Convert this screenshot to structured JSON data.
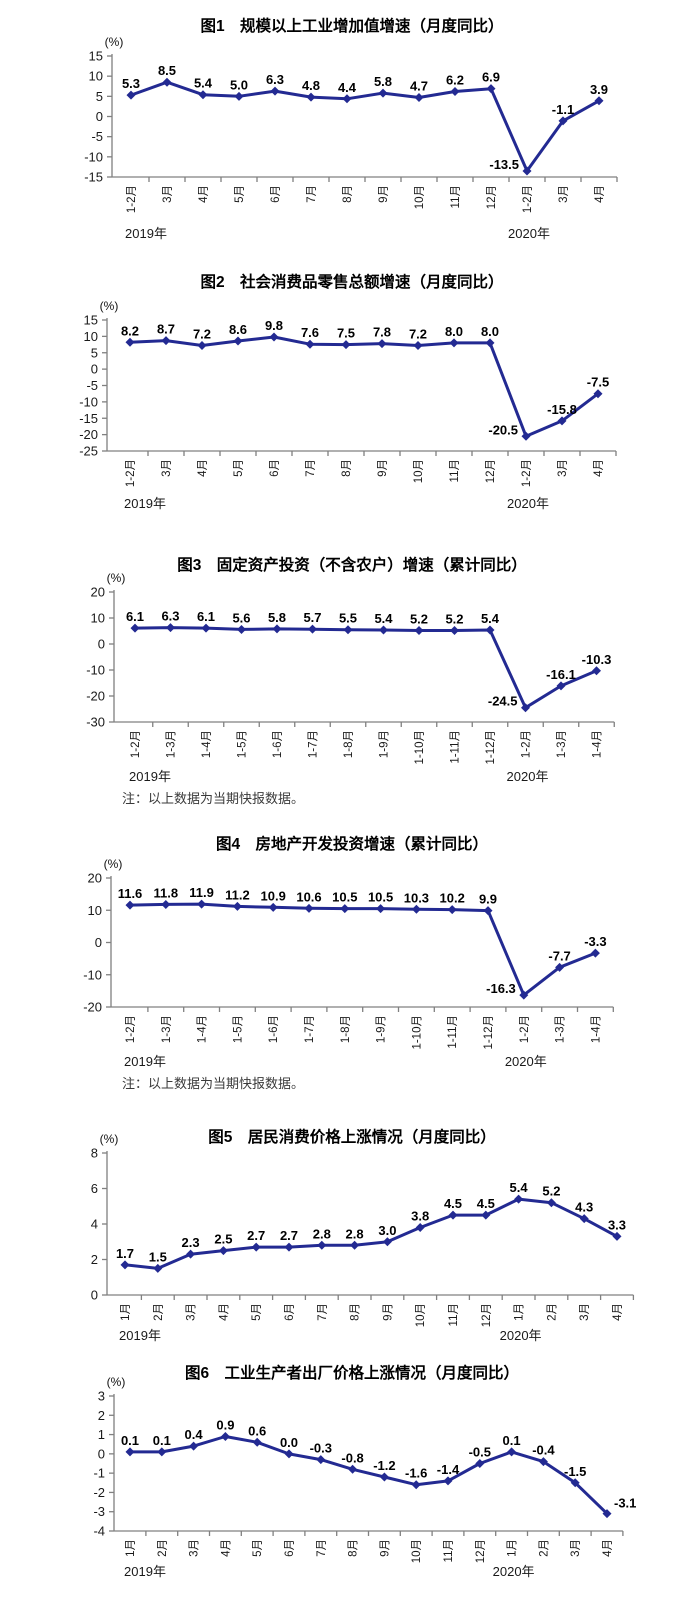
{
  "colors": {
    "line": "#232A92",
    "marker": "#232A92",
    "axis": "#808080",
    "text": "#000000"
  },
  "chart_data": [
    {
      "type": "line",
      "title": "图1　规模以上工业增加值增速（月度同比）",
      "unit": "(%)",
      "categories": [
        "1-2月",
        "3月",
        "4月",
        "5月",
        "6月",
        "7月",
        "8月",
        "9月",
        "10月",
        "11月",
        "12月",
        "1-2月",
        "3月",
        "4月"
      ],
      "values": [
        5.3,
        8.5,
        5.4,
        5.0,
        6.3,
        4.8,
        4.4,
        5.8,
        4.7,
        6.2,
        6.9,
        -13.5,
        -1.1,
        3.9
      ],
      "ylim": [
        -15,
        15
      ],
      "yticks": [
        15,
        10,
        5,
        0,
        -5,
        -10,
        -15
      ],
      "grid": false,
      "year_labels": [
        {
          "text": "2019年",
          "index": 0
        },
        {
          "text": "2020年",
          "index": 11
        }
      ]
    },
    {
      "type": "line",
      "title": "图2　社会消费品零售总额增速（月度同比）",
      "unit": "(%)",
      "categories": [
        "1-2月",
        "3月",
        "4月",
        "5月",
        "6月",
        "7月",
        "8月",
        "9月",
        "10月",
        "11月",
        "12月",
        "1-2月",
        "3月",
        "4月"
      ],
      "values": [
        8.2,
        8.7,
        7.2,
        8.6,
        9.8,
        7.6,
        7.5,
        7.8,
        7.2,
        8.0,
        8.0,
        -20.5,
        -15.8,
        -7.5
      ],
      "ylim": [
        -25,
        15
      ],
      "yticks": [
        15,
        10,
        5,
        0,
        -5,
        -10,
        -15,
        -20,
        -25
      ],
      "grid": false,
      "year_labels": [
        {
          "text": "2019年",
          "index": 0
        },
        {
          "text": "2020年",
          "index": 11
        }
      ]
    },
    {
      "type": "line",
      "title": "图3　固定资产投资（不含农户）增速（累计同比）",
      "unit": "(%)",
      "categories": [
        "1-2月",
        "1-3月",
        "1-4月",
        "1-5月",
        "1-6月",
        "1-7月",
        "1-8月",
        "1-9月",
        "1-10月",
        "1-11月",
        "1-12月",
        "1-2月",
        "1-3月",
        "1-4月"
      ],
      "values": [
        6.1,
        6.3,
        6.1,
        5.6,
        5.8,
        5.7,
        5.5,
        5.4,
        5.2,
        5.2,
        5.4,
        -24.5,
        -16.1,
        -10.3
      ],
      "ylim": [
        -30,
        20
      ],
      "yticks": [
        20,
        10,
        0,
        -10,
        -20,
        -30
      ],
      "grid": false,
      "year_labels": [
        {
          "text": "2019年",
          "index": 0
        },
        {
          "text": "2020年",
          "index": 11
        }
      ],
      "note": "注：以上数据为当期快报数据。"
    },
    {
      "type": "line",
      "title": "图4　房地产开发投资增速（累计同比）",
      "unit": "(%)",
      "categories": [
        "1-2月",
        "1-3月",
        "1-4月",
        "1-5月",
        "1-6月",
        "1-7月",
        "1-8月",
        "1-9月",
        "1-10月",
        "1-11月",
        "1-12月",
        "1-2月",
        "1-3月",
        "1-4月"
      ],
      "values": [
        11.6,
        11.8,
        11.9,
        11.2,
        10.9,
        10.6,
        10.5,
        10.5,
        10.3,
        10.2,
        9.9,
        -16.3,
        -7.7,
        -3.3
      ],
      "ylim": [
        -20,
        20
      ],
      "yticks": [
        20,
        10,
        0,
        -10,
        -20
      ],
      "grid": false,
      "year_labels": [
        {
          "text": "2019年",
          "index": 0
        },
        {
          "text": "2020年",
          "index": 11
        }
      ],
      "note": "注：以上数据为当期快报数据。"
    },
    {
      "type": "line",
      "title": "图5　居民消费价格上涨情况（月度同比）",
      "unit": "(%)",
      "categories": [
        "1月",
        "2月",
        "3月",
        "4月",
        "5月",
        "6月",
        "7月",
        "8月",
        "9月",
        "10月",
        "11月",
        "12月",
        "1月",
        "2月",
        "3月",
        "4月"
      ],
      "values": [
        1.7,
        1.5,
        2.3,
        2.5,
        2.7,
        2.7,
        2.8,
        2.8,
        3.0,
        3.8,
        4.5,
        4.5,
        5.4,
        5.2,
        4.3,
        3.3
      ],
      "ylim": [
        0,
        8
      ],
      "yticks": [
        8,
        6,
        4,
        2,
        0
      ],
      "grid": false,
      "year_labels": [
        {
          "text": "2019年",
          "index": 0
        },
        {
          "text": "2020年",
          "index": 12
        }
      ]
    },
    {
      "type": "line",
      "title": "图6　工业生产者出厂价格上涨情况（月度同比）",
      "unit": "(%)",
      "categories": [
        "1月",
        "2月",
        "3月",
        "4月",
        "5月",
        "6月",
        "7月",
        "8月",
        "9月",
        "10月",
        "11月",
        "12月",
        "1月",
        "2月",
        "3月",
        "4月"
      ],
      "values": [
        0.1,
        0.1,
        0.4,
        0.9,
        0.6,
        0.0,
        -0.3,
        -0.8,
        -1.2,
        -1.6,
        -1.4,
        -0.5,
        0.1,
        -0.4,
        -1.5,
        -3.1
      ],
      "ylim": [
        -4,
        3
      ],
      "yticks": [
        3,
        2,
        1,
        0,
        -1,
        -2,
        -3,
        -4
      ],
      "grid": false,
      "year_labels": [
        {
          "text": "2019年",
          "index": 0
        },
        {
          "text": "2020年",
          "index": 12
        }
      ]
    }
  ]
}
